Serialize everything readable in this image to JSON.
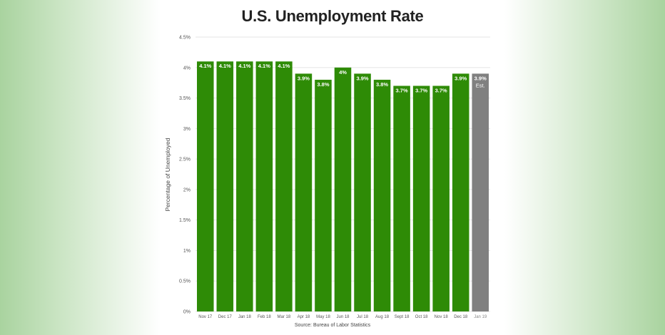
{
  "chart_data": {
    "type": "bar",
    "title": "U.S. Unemployment Rate",
    "ylabel": "Percentage of Unemployed",
    "xlabel": "",
    "source": "Source: Bureau of Labor Statistics",
    "ylim": [
      0,
      4.5
    ],
    "yticks": [
      "0%",
      "0.5%",
      "1%",
      "1.5%",
      "2%",
      "2.5%",
      "3%",
      "3.5%",
      "4%",
      "4.5%"
    ],
    "grid": true,
    "categories": [
      "Nov 17",
      "Dec 17",
      "Jan 18",
      "Feb 18",
      "Mar 18",
      "Apr 18",
      "May 18",
      "Jun 18",
      "Jul 18",
      "Aug 18",
      "Sept 18",
      "Oct 18",
      "Nov 18",
      "Dec 18",
      "Jan 19"
    ],
    "values": [
      4.1,
      4.1,
      4.1,
      4.1,
      4.1,
      3.9,
      3.8,
      4.0,
      3.9,
      3.8,
      3.7,
      3.7,
      3.7,
      3.9,
      3.9
    ],
    "data_labels": [
      "4.1%",
      "4.1%",
      "4.1%",
      "4.1%",
      "4.1%",
      "3.9%",
      "3.8%",
      "4%",
      "3.9%",
      "3.8%",
      "3.7%",
      "3.7%",
      "3.7%",
      "3.9%",
      "3.9%"
    ],
    "estimate_note": "Est.",
    "estimated_index": 14,
    "colors": {
      "actual": "#2e8b06",
      "estimate": "#808080",
      "grid": "#e6e6e6",
      "axis_text": "#555555"
    }
  }
}
